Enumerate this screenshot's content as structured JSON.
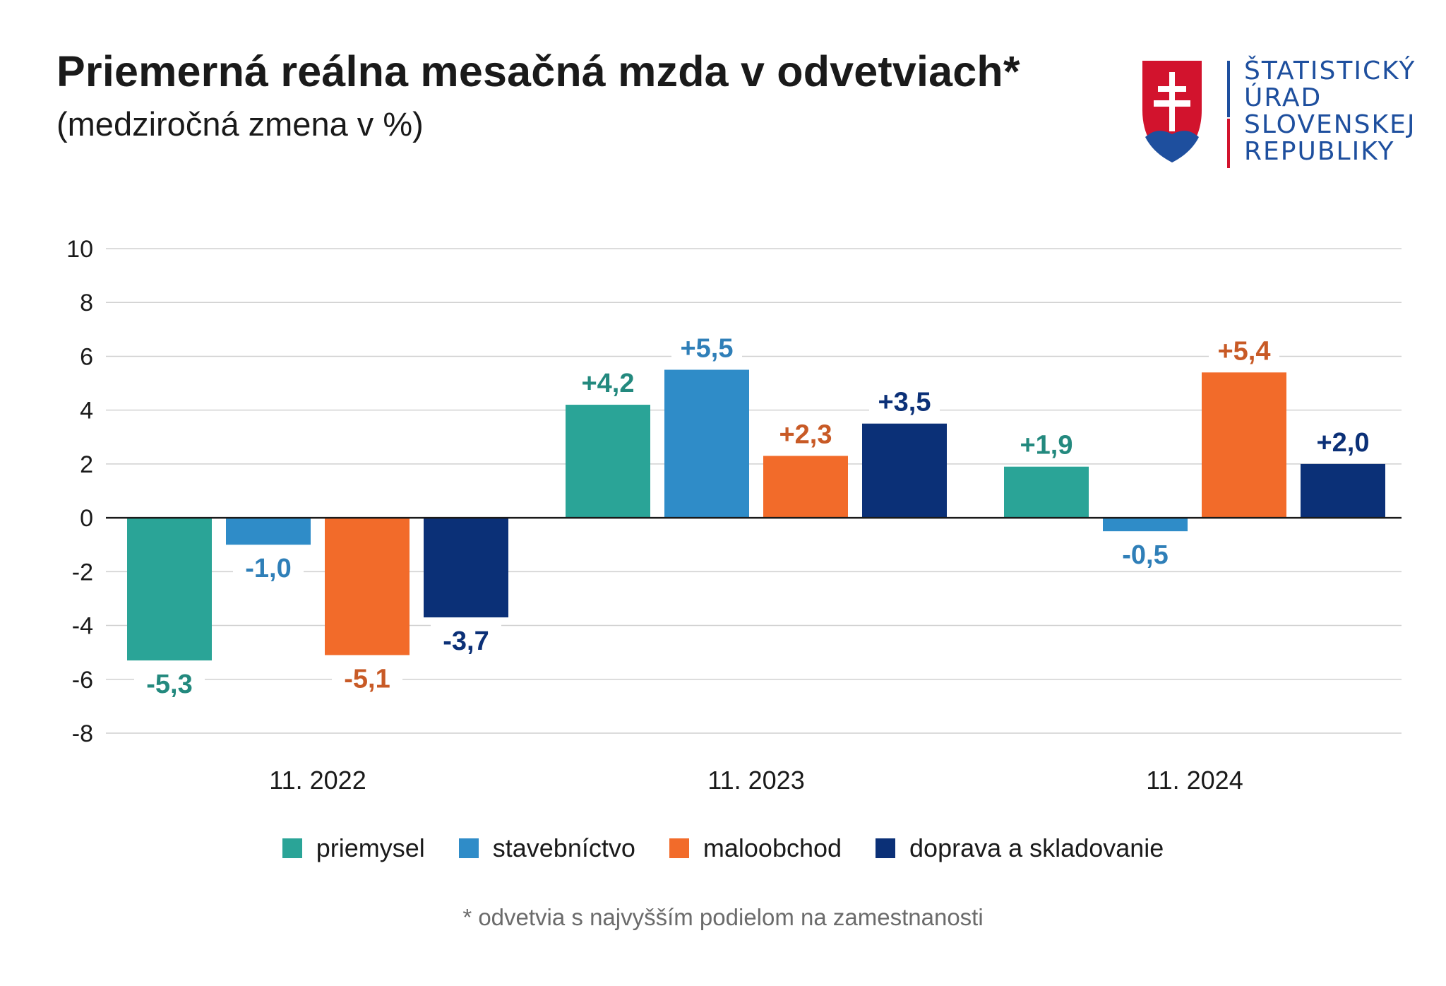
{
  "header": {
    "title": "Priemerná reálna mesačná mzda v odvetviach*",
    "subtitle": "(medziročná zmena v %)"
  },
  "logo": {
    "lines": [
      "ŠTATISTICKÝ",
      "ÚRAD",
      "SLOVENSKEJ",
      "REPUBLIKY"
    ],
    "colors": {
      "shield_red": "#d2132d",
      "shield_blue": "#1e4f9e",
      "cross": "#ffffff",
      "divider_red": "#d2132d",
      "divider_blue": "#1e4f9e"
    }
  },
  "chart_data": {
    "type": "bar",
    "categories": [
      "11. 2022",
      "11. 2023",
      "11. 2024"
    ],
    "ylim": [
      -8,
      10
    ],
    "yticks": [
      10,
      8,
      6,
      4,
      2,
      0,
      -2,
      -4,
      -6,
      -8
    ],
    "grid": true,
    "legend_position": "bottom",
    "series": [
      {
        "name": "priemysel",
        "color": "#2aa497",
        "label_color": "#23897e",
        "values": [
          -5.3,
          4.2,
          1.9
        ],
        "labels": [
          "-5,3",
          "+4,2",
          "+1,9"
        ]
      },
      {
        "name": "stavebníctvo",
        "color": "#2f8cc8",
        "label_color": "#2f7fb8",
        "values": [
          -1.0,
          5.5,
          -0.5
        ],
        "labels": [
          "-1,0",
          "+5,5",
          "-0,5"
        ]
      },
      {
        "name": "maloobchod",
        "color": "#f26b2a",
        "label_color": "#c85a26",
        "values": [
          -5.1,
          2.3,
          5.4
        ],
        "labels": [
          "-5,1",
          "+2,3",
          "+5,4"
        ]
      },
      {
        "name": "doprava a skladovanie",
        "color": "#0b3077",
        "label_color": "#0b3077",
        "values": [
          -3.7,
          3.5,
          2.0
        ],
        "labels": [
          "-3,7",
          "+3,5",
          "+2,0"
        ]
      }
    ]
  },
  "footnote": "* odvetvia s najvyšším podielom na zamestnanosti"
}
